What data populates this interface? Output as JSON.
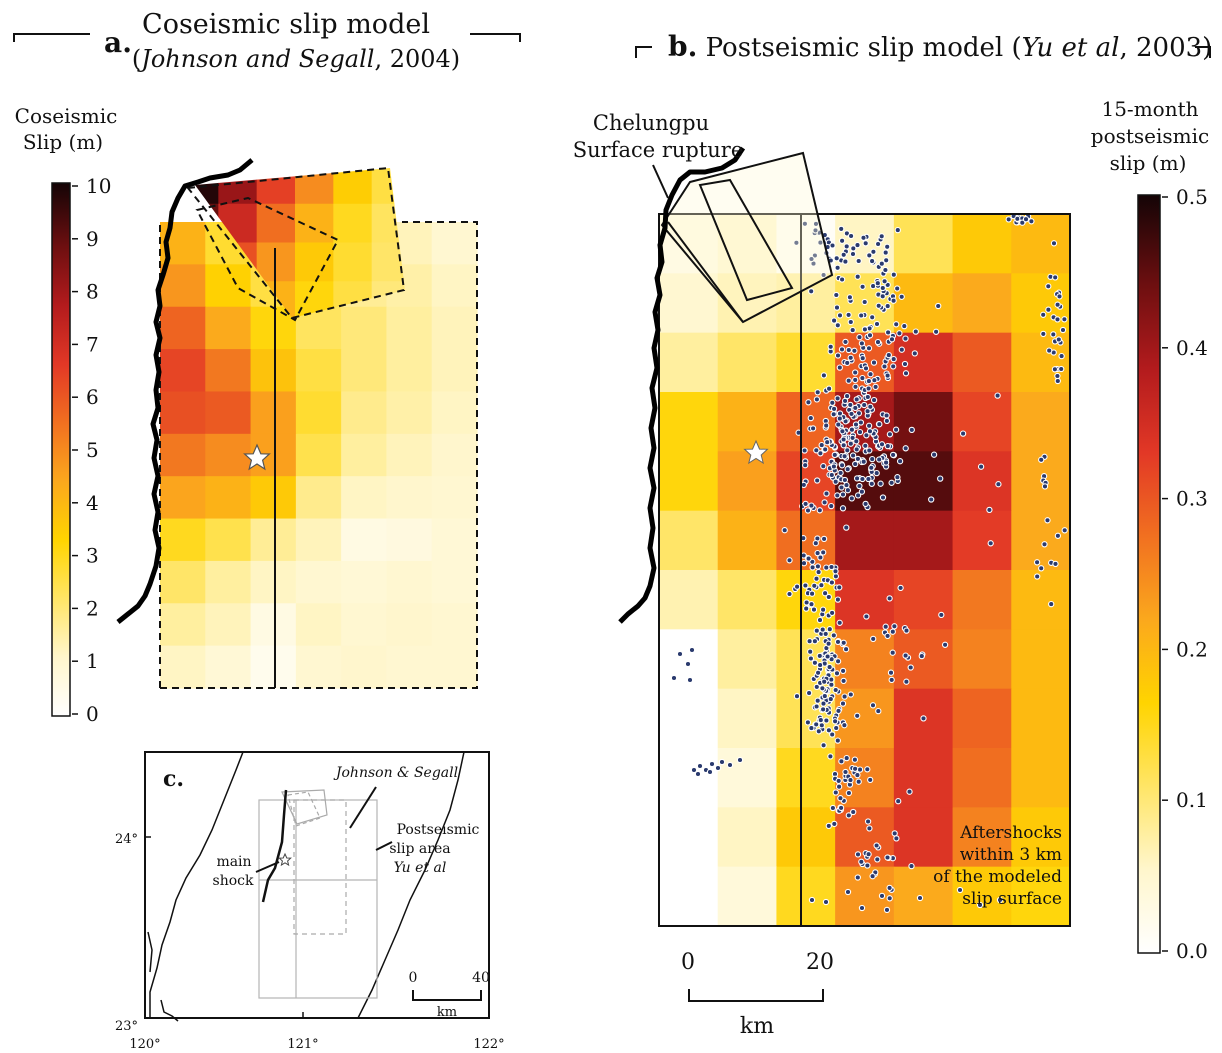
{
  "panel_a": {
    "letter": "a.",
    "title_line1": "Coseismic slip model",
    "citation_authors": "Johnson and Segall",
    "citation_year": ", 2004)",
    "colorbar_title_line1": "Coseismic",
    "colorbar_title_line2": "Slip (m)",
    "colorbar_ticks": [
      "10",
      "9",
      "8",
      "7",
      "6",
      "5",
      "4",
      "3",
      "2",
      "1",
      "0"
    ]
  },
  "panel_b": {
    "letter": "b.",
    "title": "Postseismic slip model",
    "citation_authors": "Yu et al",
    "citation_year": ", 2003)",
    "rupture_label_line1": "Chelungpu",
    "rupture_label_line2": "Surface rupture",
    "colorbar_title_line1": "15-month",
    "colorbar_title_line2": "postseismic",
    "colorbar_title_line3": "slip (m)",
    "colorbar_ticks": [
      "0.5",
      "0.4",
      "0.3",
      "0.2",
      "0.1",
      "0.0"
    ],
    "aftershock_label_line1": "Aftershocks",
    "aftershock_label_line2": "within 3 km",
    "aftershock_label_line3": "of the modeled",
    "aftershock_label_line4": "slip surface",
    "scale_ticks": [
      "0",
      "20"
    ],
    "scale_unit": "km"
  },
  "panel_c": {
    "letter": "c.",
    "label_js": "Johnson & Segall",
    "label_post_line1": "Postseismic",
    "label_post_line2": "slip area",
    "label_post_line3": "Yu et al",
    "label_main_line1": "main",
    "label_main_line2": "shock",
    "lat_labels": [
      "24°",
      "23°"
    ],
    "lon_labels": [
      "120°",
      "121°",
      "122°"
    ],
    "scale_ticks": [
      "0",
      "40"
    ],
    "scale_unit": "km"
  },
  "colors": {
    "colormap": [
      "#ffffff",
      "#fff6cc",
      "#ffe566",
      "#ffd400",
      "#fba81d",
      "#f17020",
      "#e23826",
      "#b31b1d",
      "#6e0f10",
      "#140406"
    ],
    "aftershock_fill": "#2a3a6e",
    "aftershock_stroke": "#ffffff"
  },
  "slip_grids": {
    "coseismic_main_m": [
      [
        4.2,
        2.8,
        2.2,
        1.8,
        1.5,
        1.3,
        1.0
      ],
      [
        4.8,
        3.4,
        2.6,
        2.0,
        1.7,
        1.5,
        1.2
      ],
      [
        5.8,
        4.4,
        3.2,
        2.3,
        2.0,
        1.6,
        1.3
      ],
      [
        6.4,
        5.4,
        3.8,
        2.6,
        2.0,
        1.6,
        1.3
      ],
      [
        6.2,
        6.0,
        4.6,
        2.8,
        1.8,
        1.5,
        1.2
      ],
      [
        5.4,
        5.0,
        4.6,
        2.5,
        1.6,
        1.3,
        1.1
      ],
      [
        4.5,
        4.2,
        3.6,
        1.8,
        1.2,
        1.1,
        1.0
      ],
      [
        3.0,
        2.5,
        1.7,
        1.3,
        0.6,
        0.7,
        0.9
      ],
      [
        2.2,
        1.6,
        1.2,
        1.0,
        0.9,
        1.0,
        0.9
      ],
      [
        1.6,
        1.3,
        0.6,
        1.2,
        1.0,
        1.1,
        1.0
      ],
      [
        1.2,
        0.9,
        0.4,
        1.0,
        1.1,
        1.0,
        1.0
      ]
    ],
    "coseismic_upper_m": [
      [
        9.8,
        8.2,
        6.5,
        5.0,
        3.5,
        2.6
      ],
      [
        9.0,
        7.2,
        5.6,
        4.2,
        3.0,
        2.3
      ],
      [
        8.0,
        6.2,
        4.8,
        3.6,
        2.8,
        2.2
      ],
      [
        7.0,
        5.6,
        4.2,
        3.2,
        2.6,
        2.0
      ]
    ],
    "postseismic_m": [
      [
        0.03,
        0.05,
        0.01,
        0.06,
        0.12,
        0.18,
        0.2
      ],
      [
        0.05,
        0.07,
        0.08,
        0.12,
        0.2,
        0.22,
        0.18
      ],
      [
        0.08,
        0.11,
        0.14,
        0.3,
        0.35,
        0.3,
        0.2
      ],
      [
        0.16,
        0.21,
        0.29,
        0.4,
        0.44,
        0.32,
        0.22
      ],
      [
        0.16,
        0.23,
        0.32,
        0.46,
        0.46,
        0.34,
        0.22
      ],
      [
        0.11,
        0.21,
        0.28,
        0.4,
        0.4,
        0.33,
        0.22
      ],
      [
        0.07,
        0.11,
        0.16,
        0.34,
        0.32,
        0.27,
        0.2
      ],
      [
        0.0,
        0.08,
        0.12,
        0.26,
        0.3,
        0.26,
        0.2
      ],
      [
        0.0,
        0.06,
        0.12,
        0.24,
        0.34,
        0.29,
        0.2
      ],
      [
        0.0,
        0.04,
        0.15,
        0.26,
        0.34,
        0.28,
        0.2
      ],
      [
        0.0,
        0.06,
        0.18,
        0.3,
        0.34,
        0.26,
        0.18
      ],
      [
        0.0,
        0.04,
        0.15,
        0.24,
        0.22,
        0.18,
        0.16
      ]
    ]
  }
}
